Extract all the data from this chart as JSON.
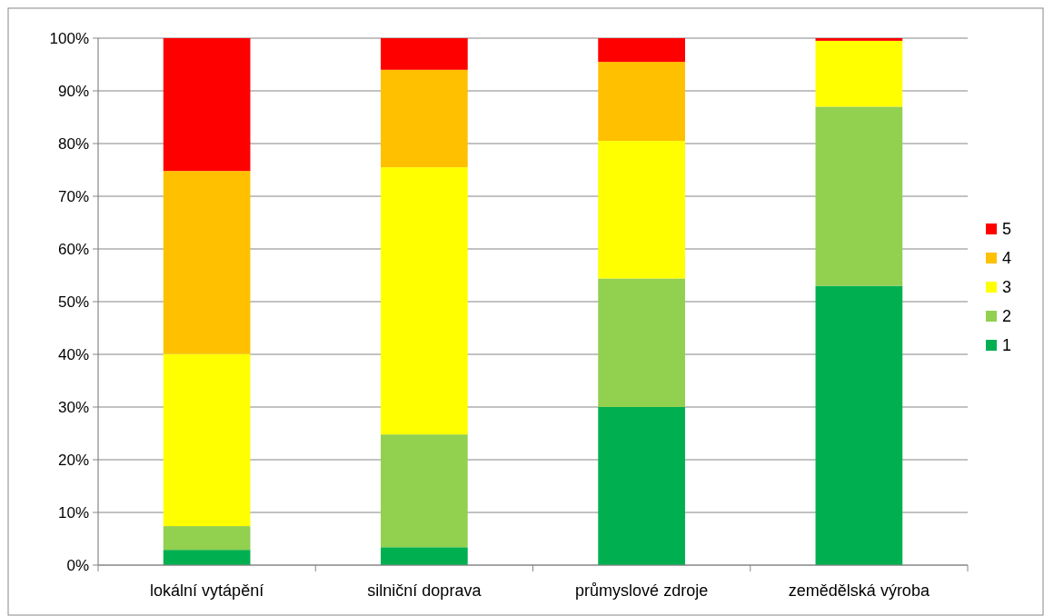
{
  "chart_data": {
    "type": "bar",
    "stacked": true,
    "categories": [
      "lokální vytápění",
      "silniční doprava",
      "průmyslové zdroje",
      "zemědělská výroba"
    ],
    "series": [
      {
        "name": "1",
        "color": "#00b050",
        "values": [
          2.9,
          3.4,
          30.0,
          53.0
        ]
      },
      {
        "name": "2",
        "color": "#92d050",
        "values": [
          4.5,
          21.4,
          24.4,
          34.0
        ]
      },
      {
        "name": "3",
        "color": "#ffff00",
        "values": [
          32.7,
          50.7,
          26.1,
          12.5
        ]
      },
      {
        "name": "4",
        "color": "#ffc000",
        "values": [
          34.7,
          18.5,
          15.0,
          0
        ]
      },
      {
        "name": "5",
        "color": "#ff0000",
        "values": [
          25.2,
          6.0,
          4.5,
          0.5
        ]
      }
    ],
    "ylim": [
      0,
      100
    ],
    "yticks": [
      {
        "value": 0,
        "label": "0%"
      },
      {
        "value": 10,
        "label": "10%"
      },
      {
        "value": 20,
        "label": "20%"
      },
      {
        "value": 30,
        "label": "30%"
      },
      {
        "value": 40,
        "label": "40%"
      },
      {
        "value": 50,
        "label": "50%"
      },
      {
        "value": 60,
        "label": "60%"
      },
      {
        "value": 70,
        "label": "70%"
      },
      {
        "value": 80,
        "label": "80%"
      },
      {
        "value": 90,
        "label": "90%"
      },
      {
        "value": 100,
        "label": "100%"
      }
    ],
    "grid": "y",
    "legend": "right"
  }
}
